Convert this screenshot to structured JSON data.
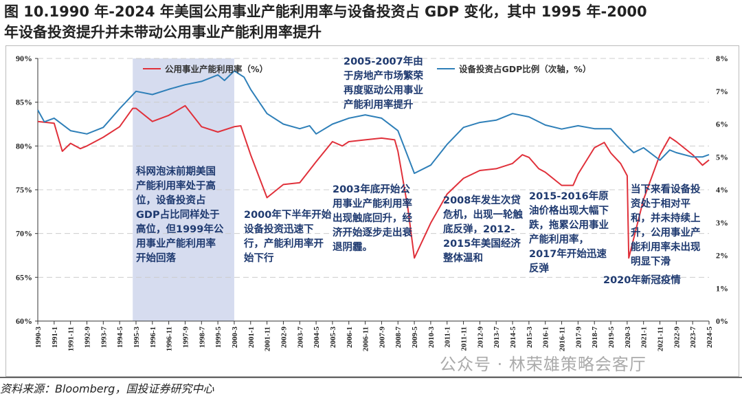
{
  "title": "图 10.1990 年-2024 年美国公用事业产能利用率与设备投资占 GDP 变化，其中 1995 年-2000 年设备投资提升并未带动公用事业产能利用率提升",
  "title_line1": "图 10.1990 年-2024 年美国公用事业产能利用率与设备投资占 GDP 变化，其中 1995 年-2000",
  "title_line2": "年设备投资提升并未带动公用事业产能利用率提升",
  "source": "资料来源：Bloomberg，国投证券研究中心",
  "watermark": "公众号 · 林荣雄策略会客厅",
  "annotations": {
    "a1": "科网泡沫前期美国产能利用率处于高位，设备投资占GDP占比同样处于高位，但1999年公用事业产能利用率开始回落",
    "a2": "2000年下半年开始设备投资迅速下行，产能利用率开始下行",
    "a3": "2003年底开始公用事业产能利用率出现触底回升，经济开始逐步走出衰退阴霾。",
    "a4": "2005-2007年由于房地产市场繁荣再度驱动公用事业产能利用率提升",
    "a5": "2008年发生次贷危机，出现一轮触底反弹，2012-2015年美国经济整体温和",
    "a6": "2015-2016年原油价格出现大幅下跌，拖累公用事业产能利用率，2017年开始迅速反弹",
    "a7": "2020年新冠疫情",
    "a8": "当下来看设备投资处于相对平和，并未持续上升，公用事业产能利用率未出现明显下滑"
  },
  "chart_data": {
    "type": "line",
    "title": "",
    "xlabel": "",
    "ylabel": "",
    "ylim": [
      60,
      90
    ],
    "y2lim": [
      0,
      8
    ],
    "yticks": [
      "60%",
      "65%",
      "70%",
      "75%",
      "80%",
      "85%",
      "90%"
    ],
    "y2ticks": [
      "0%",
      "1%",
      "2%",
      "3%",
      "4%",
      "5%",
      "6%",
      "7%",
      "8%"
    ],
    "grid": "horizontal dashed",
    "legend": "top",
    "shaded_range": [
      "1995-1",
      "2000-3"
    ],
    "xticks": [
      "1990-3",
      "1991-1",
      "1991-11",
      "1992-9",
      "1993-7",
      "1994-5",
      "1995-3",
      "1996-1",
      "1996-11",
      "1997-9",
      "1998-7",
      "1999-5",
      "2000-3",
      "2001-1",
      "2001-11",
      "2002-9",
      "2003-7",
      "2004-5",
      "2005-3",
      "2006-1",
      "2006-11",
      "2007-9",
      "2008-7",
      "2009-5",
      "2010-3",
      "2011-1",
      "2011-11",
      "2012-9",
      "2013-7",
      "2014-5",
      "2015-3",
      "2016-1",
      "2016-11",
      "2017-9",
      "2018-7",
      "2019-5",
      "2020-3",
      "2021-1",
      "2021-11",
      "2022-9",
      "2023-7",
      "2024-5"
    ],
    "series": [
      {
        "name": "公用事业产能利用率（%）",
        "axis": "left",
        "color": "#e0303a",
        "points": [
          [
            "1990-3",
            82.8
          ],
          [
            "1991-1",
            82.6
          ],
          [
            "1991-6",
            79.4
          ],
          [
            "1991-11",
            80.3
          ],
          [
            "1992-5",
            79.7
          ],
          [
            "1992-9",
            80.0
          ],
          [
            "1993-7",
            81.0
          ],
          [
            "1994-5",
            82.2
          ],
          [
            "1995-1",
            84.3
          ],
          [
            "1995-3",
            84.3
          ],
          [
            "1996-1",
            82.8
          ],
          [
            "1996-11",
            83.5
          ],
          [
            "1997-9",
            84.6
          ],
          [
            "1998-7",
            82.2
          ],
          [
            "1999-5",
            81.6
          ],
          [
            "2000-3",
            82.2
          ],
          [
            "2000-7",
            82.3
          ],
          [
            "2001-1",
            79.0
          ],
          [
            "2001-11",
            74.1
          ],
          [
            "2002-9",
            75.6
          ],
          [
            "2003-7",
            75.8
          ],
          [
            "2004-5",
            78.2
          ],
          [
            "2005-3",
            80.5
          ],
          [
            "2005-9",
            80.0
          ],
          [
            "2006-1",
            80.5
          ],
          [
            "2006-11",
            80.7
          ],
          [
            "2007-9",
            80.9
          ],
          [
            "2008-5",
            80.7
          ],
          [
            "2008-7",
            79.4
          ],
          [
            "2009-1",
            73.0
          ],
          [
            "2009-5",
            67.2
          ],
          [
            "2010-3",
            71.2
          ],
          [
            "2011-1",
            74.5
          ],
          [
            "2011-11",
            76.3
          ],
          [
            "2012-9",
            77.2
          ],
          [
            "2013-7",
            77.4
          ],
          [
            "2014-5",
            78.0
          ],
          [
            "2014-11",
            79.0
          ],
          [
            "2015-3",
            78.7
          ],
          [
            "2015-9",
            77.4
          ],
          [
            "2016-1",
            77.0
          ],
          [
            "2016-11",
            75.5
          ],
          [
            "2017-6",
            75.5
          ],
          [
            "2017-9",
            76.8
          ],
          [
            "2018-7",
            79.8
          ],
          [
            "2019-1",
            80.4
          ],
          [
            "2019-5",
            79.2
          ],
          [
            "2019-11",
            78.0
          ],
          [
            "2020-3",
            76.6
          ],
          [
            "2020-4",
            67.2
          ],
          [
            "2021-1",
            73.9
          ],
          [
            "2021-11",
            79.0
          ],
          [
            "2022-5",
            81.0
          ],
          [
            "2022-9",
            80.5
          ],
          [
            "2023-7",
            79.0
          ],
          [
            "2024-1",
            77.8
          ],
          [
            "2024-5",
            78.4
          ]
        ]
      },
      {
        "name": "设备投资占GDP比例（次轴，%）",
        "axis": "right",
        "color": "#2e7fb8",
        "points": [
          [
            "1990-3",
            6.43
          ],
          [
            "1990-7",
            6.07
          ],
          [
            "1991-1",
            6.18
          ],
          [
            "1991-11",
            5.8
          ],
          [
            "1992-9",
            5.7
          ],
          [
            "1993-7",
            5.9
          ],
          [
            "1994-5",
            6.47
          ],
          [
            "1995-3",
            7.0
          ],
          [
            "1996-1",
            6.9
          ],
          [
            "1996-11",
            7.06
          ],
          [
            "1997-9",
            7.2
          ],
          [
            "1998-7",
            7.3
          ],
          [
            "1999-5",
            7.5
          ],
          [
            "1999-9",
            7.33
          ],
          [
            "2000-3",
            7.62
          ],
          [
            "2000-9",
            7.43
          ],
          [
            "2001-1",
            7.06
          ],
          [
            "2001-11",
            6.32
          ],
          [
            "2002-9",
            6.0
          ],
          [
            "2003-7",
            5.86
          ],
          [
            "2004-1",
            5.95
          ],
          [
            "2004-5",
            5.7
          ],
          [
            "2005-3",
            6.0
          ],
          [
            "2006-1",
            6.18
          ],
          [
            "2006-11",
            6.28
          ],
          [
            "2007-9",
            6.18
          ],
          [
            "2008-7",
            5.8
          ],
          [
            "2009-5",
            4.5
          ],
          [
            "2010-3",
            4.75
          ],
          [
            "2011-1",
            5.38
          ],
          [
            "2011-11",
            5.9
          ],
          [
            "2012-9",
            6.05
          ],
          [
            "2013-7",
            6.12
          ],
          [
            "2014-5",
            6.32
          ],
          [
            "2015-3",
            6.22
          ],
          [
            "2016-1",
            5.97
          ],
          [
            "2016-11",
            5.85
          ],
          [
            "2017-9",
            5.95
          ],
          [
            "2018-7",
            5.86
          ],
          [
            "2019-5",
            5.86
          ],
          [
            "2020-3",
            5.32
          ],
          [
            "2020-7",
            5.13
          ],
          [
            "2021-1",
            5.28
          ],
          [
            "2021-11",
            4.9
          ],
          [
            "2022-5",
            5.21
          ],
          [
            "2022-9",
            5.13
          ],
          [
            "2023-7",
            5.0
          ],
          [
            "2024-1",
            5.0
          ],
          [
            "2024-5",
            5.07
          ]
        ]
      }
    ]
  }
}
